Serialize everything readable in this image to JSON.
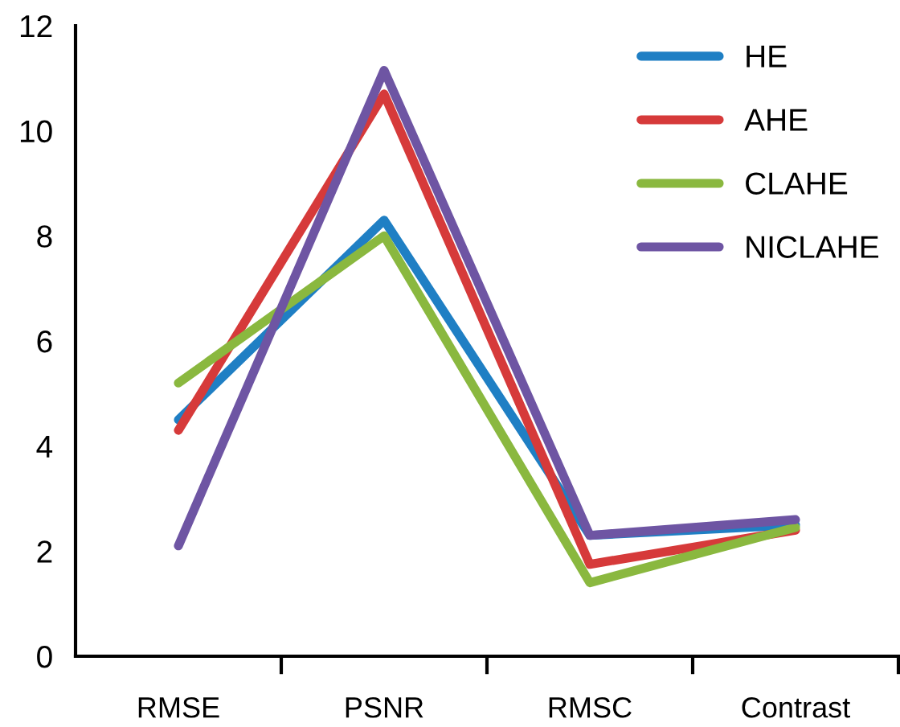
{
  "chart_data": {
    "type": "line",
    "categories": [
      "RMSE",
      "PSNR",
      "RMSC",
      "Contrast"
    ],
    "series": [
      {
        "name": "HE",
        "color": "#1f7fc4",
        "values": [
          4.5,
          8.3,
          2.3,
          2.5
        ]
      },
      {
        "name": "AHE",
        "color": "#d63a3a",
        "values": [
          4.3,
          10.7,
          1.75,
          2.4
        ]
      },
      {
        "name": "CLAHE",
        "color": "#8ab83f",
        "values": [
          5.2,
          8.0,
          1.4,
          2.45
        ]
      },
      {
        "name": "NICLAHE",
        "color": "#6e55a3",
        "values": [
          2.1,
          11.15,
          2.3,
          2.6
        ]
      }
    ],
    "ylim": [
      0,
      12
    ],
    "yticks": [
      0,
      2,
      4,
      6,
      8,
      10,
      12
    ],
    "grid": false,
    "legend": "top right",
    "marker": "none",
    "line_style": "solid"
  }
}
